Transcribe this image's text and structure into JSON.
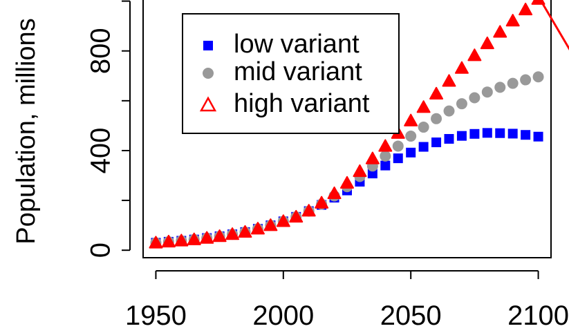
{
  "chart_data": {
    "type": "scatter",
    "title": "",
    "xlabel": "",
    "ylabel": "Population, millions",
    "xlim": [
      1945,
      2105
    ],
    "ylim": [
      -30,
      1010
    ],
    "xticks": [
      "1950",
      "2000",
      "2050",
      "2100"
    ],
    "yticks": [
      "0",
      "400",
      "800"
    ],
    "grid": false,
    "legend_position": "top-left",
    "x": [
      1950,
      1955,
      1960,
      1965,
      1970,
      1975,
      1980,
      1985,
      1990,
      1995,
      2000,
      2005,
      2010,
      2015,
      2020,
      2025,
      2030,
      2035,
      2040,
      2045,
      2050,
      2055,
      2060,
      2065,
      2070,
      2075,
      2080,
      2085,
      2090,
      2095,
      2100
    ],
    "series": [
      {
        "name": "low variant",
        "color": "#0000ff",
        "marker": "square",
        "values": [
          30,
          34,
          38,
          43,
          49,
          56,
          64,
          73,
          86,
          100,
          116,
          134,
          157,
          182,
          211,
          240,
          275,
          308,
          340,
          369,
          392,
          415,
          433,
          447,
          459,
          467,
          471,
          470,
          468,
          463,
          456
        ]
      },
      {
        "name": "mid variant",
        "color": "#999999",
        "marker": "circle",
        "values": [
          30,
          34,
          38,
          43,
          49,
          56,
          64,
          73,
          86,
          100,
          116,
          134,
          157,
          185,
          218,
          255,
          296,
          338,
          378,
          418,
          458,
          494,
          528,
          559,
          588,
          612,
          635,
          654,
          670,
          684,
          696
        ]
      },
      {
        "name": "high variant",
        "color": "#ff0000",
        "marker": "triangle",
        "values": [
          30,
          34,
          38,
          43,
          49,
          56,
          64,
          73,
          86,
          100,
          116,
          134,
          158,
          190,
          228,
          270,
          317,
          368,
          418,
          470,
          520,
          574,
          628,
          679,
          731,
          782,
          830,
          876,
          921,
          966,
          1008
        ]
      }
    ]
  }
}
